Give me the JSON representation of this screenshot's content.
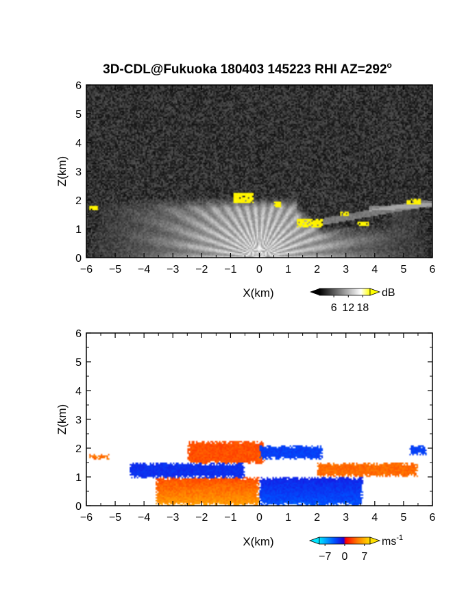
{
  "title": "3D-CDL@Fukuoka 180403 145223 RHI AZ=292",
  "title_sup": "o",
  "chart_data": [
    {
      "type": "heatmap",
      "panel": "reflectivity",
      "xlabel": "X(km)",
      "ylabel": "Z(km)",
      "xlim": [
        -6,
        6
      ],
      "ylim": [
        0,
        6
      ],
      "xticks": [
        "-6",
        "-5",
        "-4",
        "-3",
        "-2",
        "-1",
        "0",
        "1",
        "2",
        "3",
        "4",
        "5",
        "6"
      ],
      "yticks": [
        "0",
        "1",
        "2",
        "3",
        "4",
        "5",
        "6"
      ],
      "background": "noise-dark-gray",
      "colorbar": {
        "unit": "dB",
        "ticks": [
          "6",
          "12",
          "18"
        ],
        "range": [
          0,
          21
        ],
        "colors": [
          "#000000",
          "#ffffff",
          "#ffff00"
        ]
      },
      "features": [
        {
          "kind": "fan",
          "x_center": 0,
          "peak_dB": 14,
          "extent_km": 4.5,
          "top_km": 2.1
        },
        {
          "kind": "yellow_patch",
          "x": [
            -0.9,
            -0.2
          ],
          "z": [
            1.9,
            2.25
          ],
          "value_dB": 19
        },
        {
          "kind": "yellow_patch",
          "x": [
            0.5,
            0.75
          ],
          "z": [
            1.75,
            1.95
          ],
          "value_dB": 19
        },
        {
          "kind": "yellow_patch",
          "x": [
            1.3,
            2.2
          ],
          "z": [
            1.05,
            1.35
          ],
          "value_dB": 19
        },
        {
          "kind": "yellow_patch",
          "x": [
            2.8,
            3.1
          ],
          "z": [
            1.45,
            1.62
          ],
          "value_dB": 19
        },
        {
          "kind": "yellow_patch",
          "x": [
            3.4,
            3.8
          ],
          "z": [
            1.1,
            1.25
          ],
          "value_dB": 19
        },
        {
          "kind": "yellow_patch",
          "x": [
            5.1,
            5.6
          ],
          "z": [
            1.85,
            2.05
          ],
          "value_dB": 19
        },
        {
          "kind": "yellow_patch",
          "x": [
            -5.9,
            -5.6
          ],
          "z": [
            1.65,
            1.8
          ],
          "value_dB": 19
        }
      ]
    },
    {
      "type": "heatmap",
      "panel": "radial_velocity",
      "xlabel": "X(km)",
      "ylabel": "Z(km)",
      "xlim": [
        -6,
        6
      ],
      "ylim": [
        0,
        6
      ],
      "xticks": [
        "-6",
        "-5",
        "-4",
        "-3",
        "-2",
        "-1",
        "0",
        "1",
        "2",
        "3",
        "4",
        "5",
        "6"
      ],
      "yticks": [
        "0",
        "1",
        "2",
        "3",
        "4",
        "5",
        "6"
      ],
      "colorbar": {
        "unit": "ms",
        "unit_sup": "-1",
        "ticks": [
          "-7",
          "0",
          "7"
        ],
        "range": [
          -9,
          9
        ],
        "colors": [
          "#00e5ff",
          "#0050ff",
          "#1f00d6",
          "#ff0000",
          "#ff7a00",
          "#ffe000"
        ]
      },
      "regions": [
        {
          "name": "near-surface outflow west",
          "x": [
            -3.6,
            0
          ],
          "z": [
            0,
            1.0
          ],
          "velocity_ms": 6
        },
        {
          "name": "near-surface flow east",
          "x": [
            0,
            3.6
          ],
          "z": [
            0,
            1.0
          ],
          "velocity_ms": -5
        },
        {
          "name": "upper west layer",
          "x": [
            -2.5,
            0.2
          ],
          "z": [
            1.45,
            2.25
          ],
          "velocity_ms": 3
        },
        {
          "name": "upper east layer",
          "x": [
            0,
            2.2
          ],
          "z": [
            1.6,
            2.1
          ],
          "velocity_ms": -4
        },
        {
          "name": "mid blue band",
          "x": [
            -4.5,
            -0.5
          ],
          "z": [
            0.95,
            1.5
          ],
          "velocity_ms": -3
        },
        {
          "name": "east red band",
          "x": [
            2.0,
            5.5
          ],
          "z": [
            1.0,
            1.5
          ],
          "velocity_ms": 4
        },
        {
          "name": "far-west red patch",
          "x": [
            -5.9,
            -5.2
          ],
          "z": [
            1.6,
            1.8
          ],
          "velocity_ms": 4
        },
        {
          "name": "far-east blue patch",
          "x": [
            5.2,
            5.8
          ],
          "z": [
            1.75,
            2.1
          ],
          "velocity_ms": -4
        }
      ]
    }
  ]
}
